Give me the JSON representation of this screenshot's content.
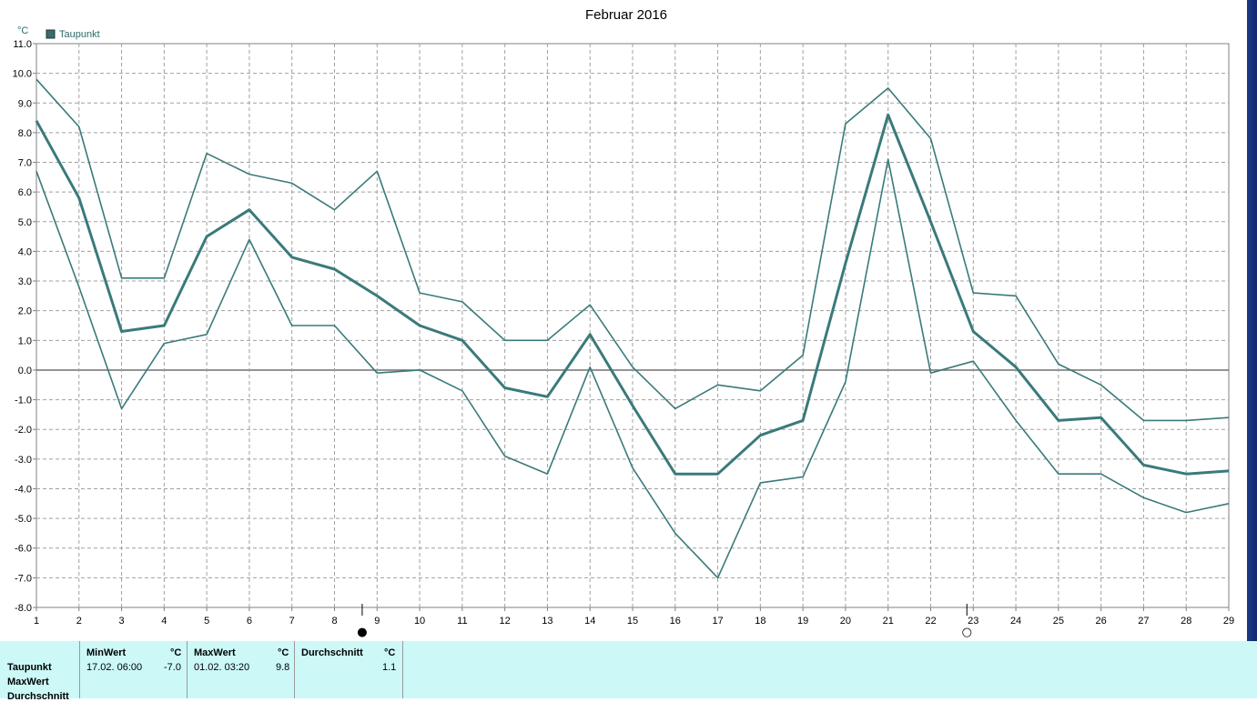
{
  "chart_data": {
    "type": "line",
    "title": "Februar 2016",
    "ylabel": "°C",
    "legend": {
      "label": "Taupunkt",
      "position": "top-left"
    },
    "ylim": [
      -8.0,
      11.0
    ],
    "yticks": [
      "11.0",
      "10.0",
      "9.0",
      "8.0",
      "7.0",
      "6.0",
      "5.0",
      "4.0",
      "3.0",
      "2.0",
      "1.0",
      "0.0",
      "-1.0",
      "-2.0",
      "-3.0",
      "-4.0",
      "-5.0",
      "-6.0",
      "-7.0",
      "-8.0"
    ],
    "x": [
      1,
      2,
      3,
      4,
      5,
      6,
      7,
      8,
      9,
      10,
      11,
      12,
      13,
      14,
      15,
      16,
      17,
      18,
      19,
      20,
      21,
      22,
      23,
      24,
      25,
      26,
      27,
      28,
      29
    ],
    "grid": true,
    "color": "#3a7a7a",
    "series": [
      {
        "key": "max",
        "values": [
          9.8,
          8.2,
          3.1,
          3.1,
          7.3,
          6.6,
          6.3,
          5.4,
          6.7,
          2.6,
          2.3,
          1.0,
          1.0,
          2.2,
          0.1,
          -1.3,
          -0.5,
          -0.7,
          0.5,
          8.3,
          9.5,
          7.8,
          2.6,
          2.5,
          0.2,
          -0.5,
          -1.7,
          -1.7,
          -1.6
        ]
      },
      {
        "key": "avg",
        "values": [
          8.4,
          5.8,
          1.3,
          1.5,
          4.5,
          5.4,
          3.8,
          3.4,
          2.5,
          1.5,
          1.0,
          -0.6,
          -0.9,
          1.2,
          -1.2,
          -3.5,
          -3.5,
          -2.2,
          -1.7,
          3.6,
          8.6,
          5.0,
          1.3,
          0.1,
          -1.7,
          -1.6,
          -3.2,
          -3.5,
          -3.4
        ]
      },
      {
        "key": "min",
        "values": [
          6.7,
          2.8,
          -1.3,
          0.9,
          1.2,
          4.4,
          1.5,
          1.5,
          -0.1,
          0.0,
          -0.7,
          -2.9,
          -3.5,
          0.1,
          -3.3,
          -5.5,
          -7.0,
          -3.8,
          -3.6,
          -0.4,
          7.1,
          -0.1,
          0.3,
          -1.7,
          -3.5,
          -3.5,
          -4.3,
          -4.8,
          -4.5
        ]
      }
    ],
    "markers": [
      {
        "x": 8.65,
        "symbol": "●",
        "name": "new-moon"
      },
      {
        "x": 22.85,
        "symbol": "○",
        "name": "full-moon"
      }
    ]
  },
  "stats_table": {
    "row_labels": [
      "Taupunkt",
      "MaxWert",
      "Durchschnitt"
    ],
    "min": {
      "header": "MinWert",
      "unit": "°C",
      "date": "17.02.  06:00",
      "value": "-7.0"
    },
    "max": {
      "header": "MaxWert",
      "unit": "°C",
      "date": "01.02.  03:20",
      "value": "9.8"
    },
    "avg": {
      "header": "Durchschnitt",
      "unit": "°C",
      "value": "1.1"
    }
  }
}
